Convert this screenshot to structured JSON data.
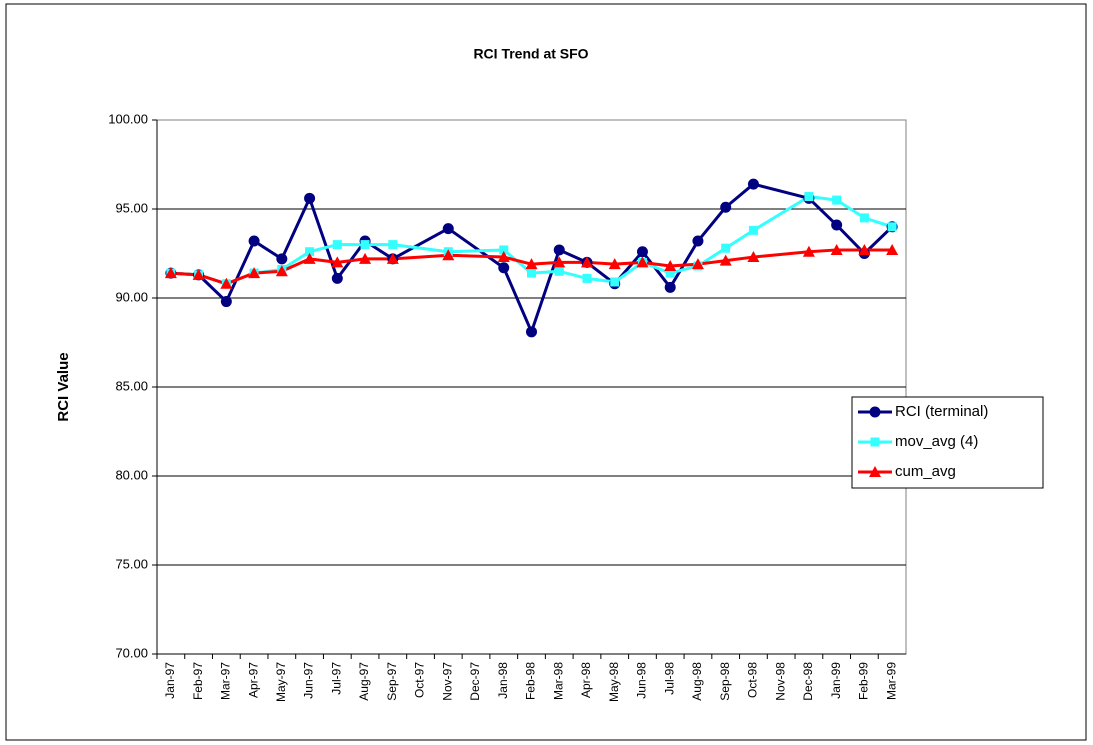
{
  "chart_data": {
    "type": "line",
    "title": "RCI Trend at SFO",
    "ylabel": "RCI Value",
    "categories": [
      "Jan-97",
      "Feb-97",
      "Mar-97",
      "Apr-97",
      "May-97",
      "Jun-97",
      "Jul-97",
      "Aug-97",
      "Sep-97",
      "Oct-97",
      "Nov-97",
      "Dec-97",
      "Jan-98",
      "Feb-98",
      "Mar-98",
      "Apr-98",
      "May-98",
      "Jun-98",
      "Jul-98",
      "Aug-98",
      "Sep-98",
      "Oct-98",
      "Nov-98",
      "Dec-98",
      "Jan-99",
      "Feb-99",
      "Mar-99"
    ],
    "series": [
      {
        "name": "RCI (terminal)",
        "color": "#000080",
        "marker": "circle",
        "values": [
          91.4,
          91.3,
          89.8,
          93.2,
          92.2,
          95.6,
          91.1,
          93.2,
          92.2,
          null,
          93.9,
          null,
          91.7,
          88.1,
          92.7,
          92.0,
          90.8,
          92.6,
          90.6,
          93.2,
          95.1,
          96.4,
          null,
          95.6,
          94.1,
          92.5,
          94.0
        ]
      },
      {
        "name": "mov_avg (4)",
        "color": "#33ffff",
        "marker": "square",
        "values": [
          91.4,
          91.3,
          90.8,
          91.4,
          91.6,
          92.6,
          93.0,
          93.0,
          93.0,
          null,
          92.6,
          null,
          92.7,
          91.4,
          91.5,
          91.1,
          90.9,
          92.0,
          91.4,
          91.8,
          92.8,
          93.8,
          null,
          95.7,
          95.5,
          94.5,
          94.0
        ]
      },
      {
        "name": "cum_avg",
        "color": "#ff0000",
        "marker": "triangle",
        "values": [
          91.4,
          91.3,
          90.8,
          91.4,
          91.5,
          92.2,
          92.0,
          92.2,
          92.2,
          null,
          92.4,
          null,
          92.3,
          91.9,
          92.0,
          92.0,
          91.9,
          92.0,
          91.8,
          91.9,
          92.1,
          92.3,
          null,
          92.6,
          92.7,
          92.7,
          92.7
        ]
      }
    ],
    "ylim": [
      70,
      100
    ],
    "yticks": [
      {
        "value": 70,
        "label": "70.00"
      },
      {
        "value": 75,
        "label": "75.00"
      },
      {
        "value": 80,
        "label": "80.00"
      },
      {
        "value": 85,
        "label": "85.00"
      },
      {
        "value": 90,
        "label": "90.00"
      },
      {
        "value": 95,
        "label": "95.00"
      },
      {
        "value": 100,
        "label": "100.00"
      }
    ],
    "grid": true,
    "connect_gaps": true,
    "legend": "right"
  }
}
